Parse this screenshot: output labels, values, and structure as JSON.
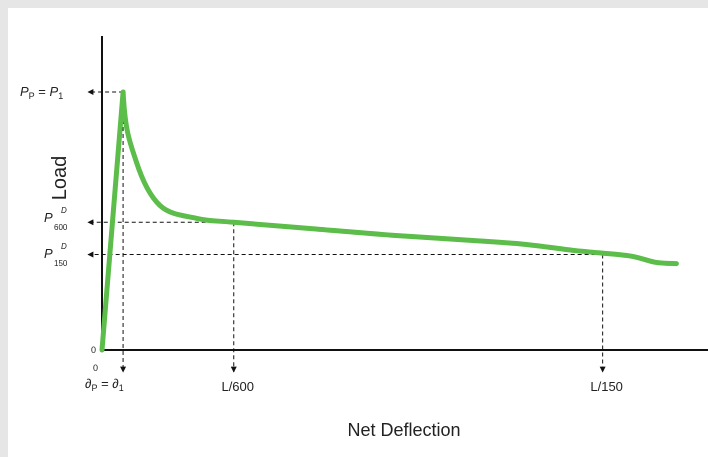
{
  "chart_data": {
    "type": "line",
    "xlabel": "Net Deflection",
    "ylabel": "Load",
    "grid": false,
    "line_color": "#5cbd4a",
    "origin": {
      "x_label": "0",
      "y_label": "0"
    },
    "curve": {
      "x": [
        0,
        0.04,
        0.065,
        0.11,
        0.18,
        0.25,
        0.4,
        0.55,
        0.7,
        0.8,
        0.9,
        1.0,
        1.05,
        1.09
      ],
      "y": [
        0,
        1.0,
        0.73,
        0.56,
        0.51,
        0.495,
        0.47,
        0.445,
        0.425,
        0.41,
        0.385,
        0.365,
        0.34,
        0.335
      ]
    },
    "peak": {
      "x": 0.04,
      "y": 1.0
    },
    "l600": {
      "x": 0.25,
      "y": 0.495
    },
    "l150": {
      "x": 0.95,
      "y": 0.37
    },
    "labels": {
      "pp_p": "P",
      "pp_sub": "P",
      "pp_eq": " = ",
      "p1_p": "P",
      "p1_sub": "1",
      "p600_p": "P",
      "p600_sup": "D",
      "p600_sub": "600",
      "p150_p": "P",
      "p150_sup": "D",
      "p150_sub": "150",
      "dp_d": "∂",
      "dp_sub": "P",
      "dp_eq": " = ",
      "d1_d": "∂",
      "d1_sub": "1",
      "l600": "L/600",
      "l150": "L/150"
    }
  }
}
